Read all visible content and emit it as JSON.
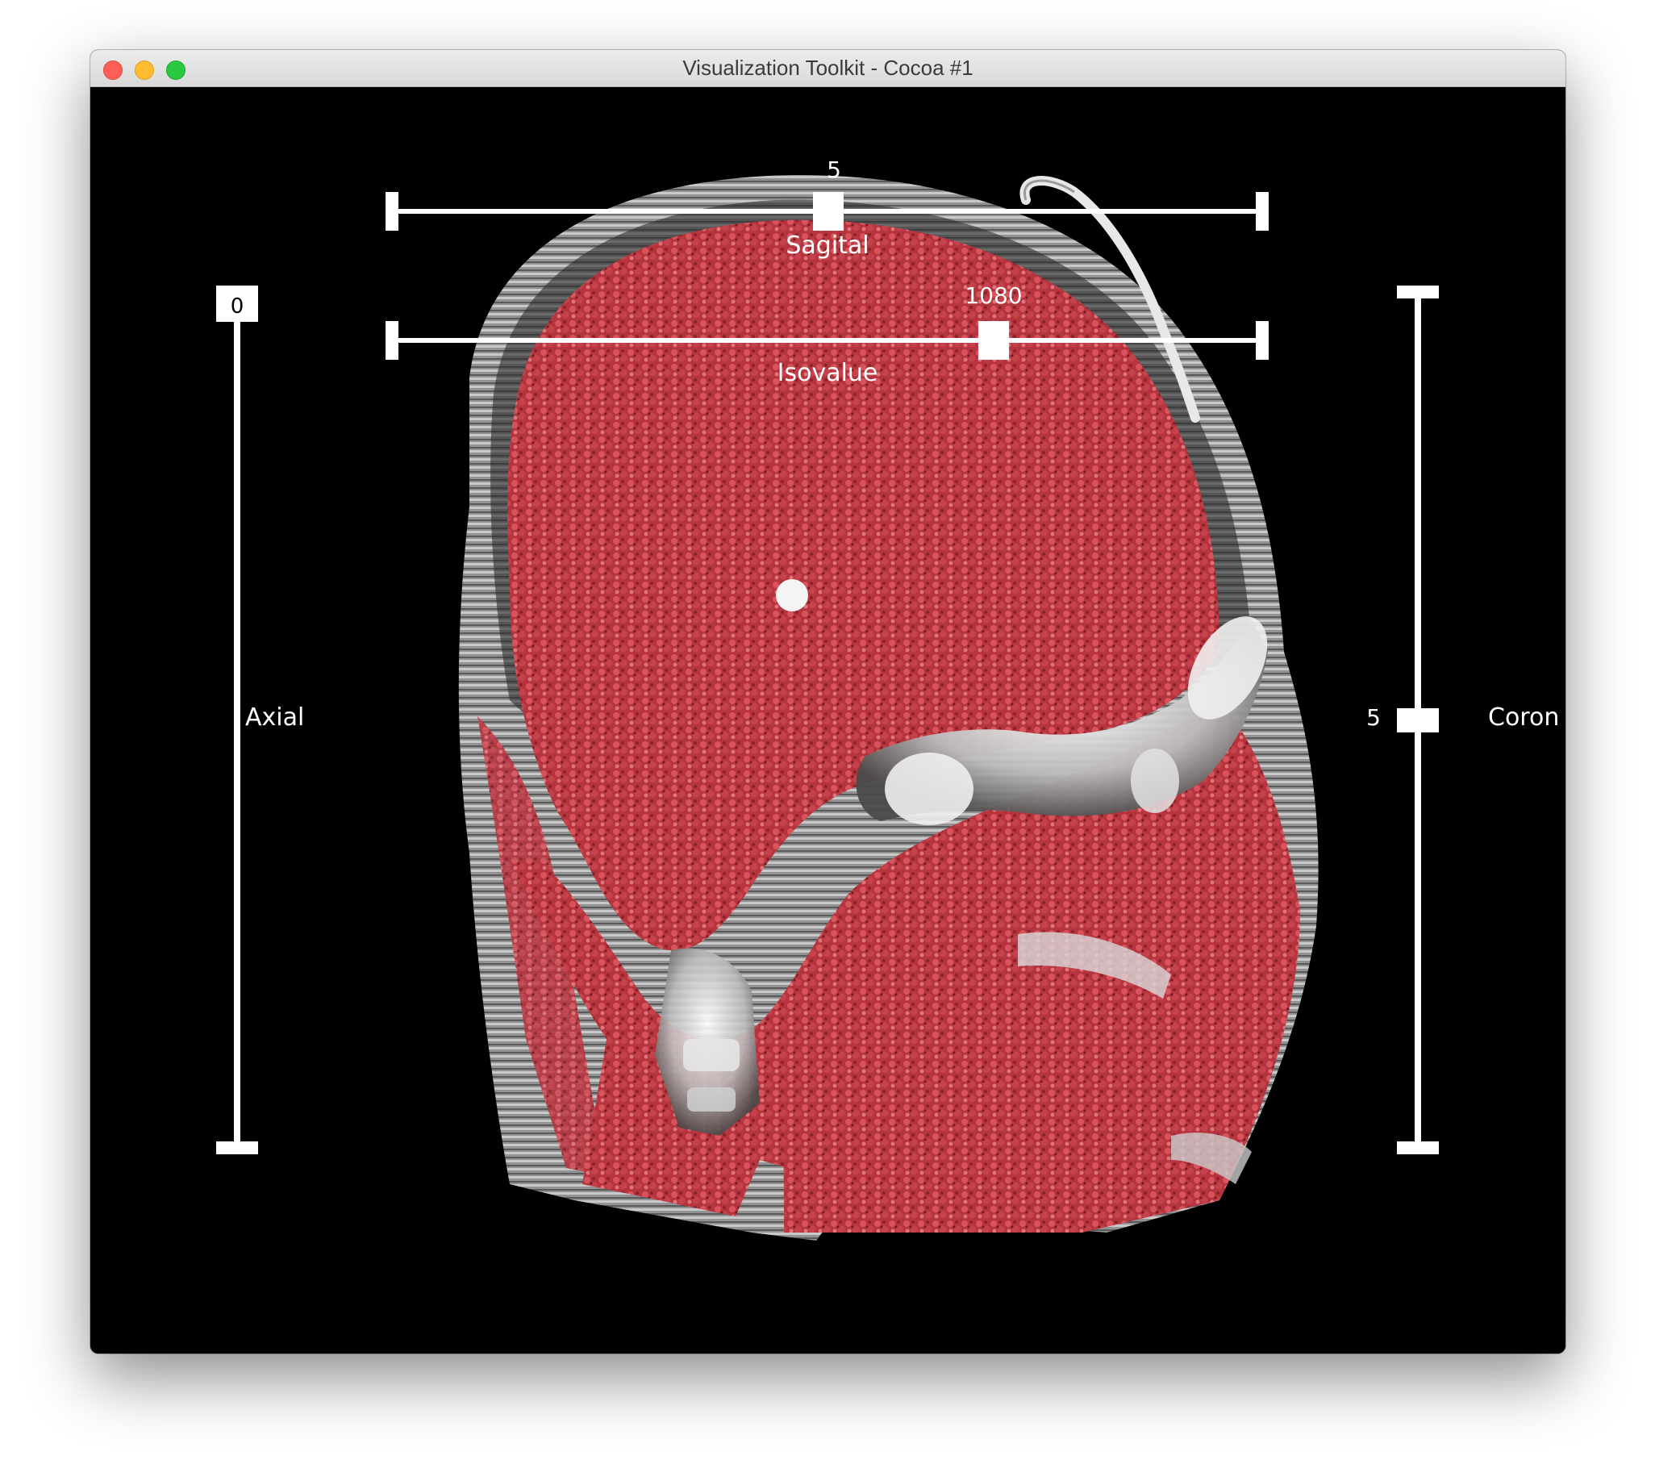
{
  "window": {
    "title": "Visualization Toolkit - Cocoa #1",
    "buttons": [
      "close",
      "minimize",
      "zoom"
    ]
  },
  "scene": {
    "description_icon": "ct-head-isosurface",
    "colors": {
      "background": "#000000",
      "tissue": "#c8404a",
      "bone": "#dcdcdc",
      "widget": "#ffffff"
    }
  },
  "sliders": {
    "sagital": {
      "label": "Sagital",
      "value": "5"
    },
    "isovalue": {
      "label": "Isovalue",
      "value": "1080"
    },
    "axial": {
      "label": "Axial",
      "value": "0"
    },
    "coronal": {
      "label": "Coron",
      "value": "5"
    }
  }
}
